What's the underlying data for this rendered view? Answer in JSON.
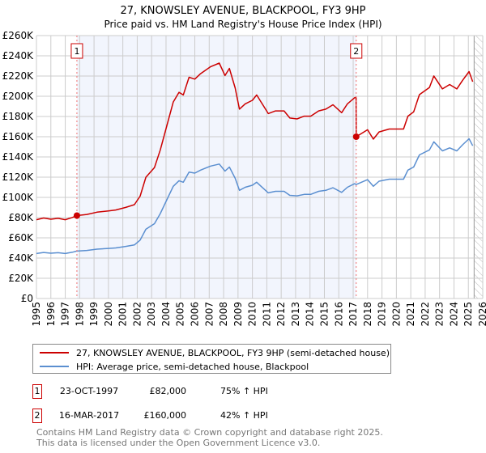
{
  "chart_data": {
    "type": "line",
    "title": "27, KNOWSLEY AVENUE, BLACKPOOL, FY3 9HP",
    "subtitle": "Price paid vs. HM Land Registry's House Price Index (HPI)",
    "xlim": [
      1995,
      2026
    ],
    "ylim": [
      0,
      260000
    ],
    "x_ticks": [
      "1995",
      "1996",
      "1997",
      "1998",
      "1999",
      "2000",
      "2001",
      "2002",
      "2003",
      "2004",
      "2005",
      "2006",
      "2007",
      "2008",
      "2009",
      "2010",
      "2011",
      "2012",
      "2013",
      "2014",
      "2015",
      "2016",
      "2017",
      "2018",
      "2019",
      "2020",
      "2021",
      "2022",
      "2023",
      "2024",
      "2025",
      "2026"
    ],
    "y_ticks": [
      {
        "v": 0,
        "label": "£0"
      },
      {
        "v": 20000,
        "label": "£20K"
      },
      {
        "v": 40000,
        "label": "£40K"
      },
      {
        "v": 60000,
        "label": "£60K"
      },
      {
        "v": 80000,
        "label": "£80K"
      },
      {
        "v": 100000,
        "label": "£100K"
      },
      {
        "v": 120000,
        "label": "£120K"
      },
      {
        "v": 140000,
        "label": "£140K"
      },
      {
        "v": 160000,
        "label": "£160K"
      },
      {
        "v": 180000,
        "label": "£180K"
      },
      {
        "v": 200000,
        "label": "£200K"
      },
      {
        "v": 220000,
        "label": "£220K"
      },
      {
        "v": 240000,
        "label": "£240K"
      },
      {
        "v": 260000,
        "label": "£260K"
      }
    ],
    "grid": true,
    "legend_placement": "below",
    "series": [
      {
        "name": "27, KNOWSLEY AVENUE, BLACKPOOL, FY3 9HP (semi-detached house)",
        "color": "#cc0000",
        "x": [
          1995.0,
          1995.5,
          1996.0,
          1996.5,
          1997.0,
          1997.5,
          1997.81,
          1998.5,
          1999.2,
          2000.0,
          2000.5,
          2001.2,
          2001.8,
          2002.2,
          2002.6,
          2003.2,
          2003.6,
          2004.0,
          2004.5,
          2004.9,
          2005.2,
          2005.6,
          2006.0,
          2006.4,
          2007.1,
          2007.7,
          2008.1,
          2008.4,
          2008.8,
          2009.1,
          2009.5,
          2010.0,
          2010.3,
          2010.6,
          2011.1,
          2011.6,
          2012.2,
          2012.6,
          2013.1,
          2013.6,
          2014.05,
          2014.6,
          2015.1,
          2015.6,
          2016.2,
          2016.6,
          2017.1,
          2017.2,
          2017.21,
          2018.0,
          2018.4,
          2018.8,
          2019.5,
          2020.5,
          2020.8,
          2021.2,
          2021.6,
          2022.3,
          2022.6,
          2023.2,
          2023.7,
          2024.2,
          2024.6,
          2025.05,
          2025.3
        ],
        "y": [
          77900,
          79600,
          78400,
          79300,
          77900,
          80200,
          82000,
          83100,
          85400,
          86600,
          87500,
          90100,
          92800,
          101200,
          119900,
          129500,
          147000,
          168000,
          194300,
          203900,
          201300,
          218800,
          217000,
          222300,
          229300,
          232800,
          220500,
          227500,
          208300,
          187300,
          192500,
          196000,
          201300,
          194300,
          182900,
          185500,
          185500,
          178500,
          177600,
          180300,
          180300,
          185500,
          187300,
          191600,
          183800,
          192500,
          198600,
          199000,
          160000,
          166900,
          157600,
          164700,
          167600,
          167600,
          180300,
          184600,
          201600,
          208700,
          220100,
          207300,
          211600,
          207300,
          215800,
          224400,
          214400
        ]
      },
      {
        "name": "HPI: Average price, semi-detached house, Blackpool",
        "color": "#5b8fd0",
        "x": [
          1995.0,
          1995.5,
          1996.0,
          1996.5,
          1997.0,
          1997.5,
          1997.81,
          1998.5,
          1999.2,
          2000.0,
          2000.5,
          2001.2,
          2001.8,
          2002.2,
          2002.6,
          2003.2,
          2003.6,
          2004.0,
          2004.5,
          2004.9,
          2005.2,
          2005.6,
          2006.0,
          2006.4,
          2007.1,
          2007.7,
          2008.1,
          2008.4,
          2008.8,
          2009.1,
          2009.5,
          2010.0,
          2010.3,
          2010.6,
          2011.1,
          2011.6,
          2012.2,
          2012.6,
          2013.1,
          2013.6,
          2014.05,
          2014.6,
          2015.1,
          2015.6,
          2016.2,
          2016.6,
          2017.1,
          2017.21,
          2018.0,
          2018.4,
          2018.8,
          2019.5,
          2020.5,
          2020.8,
          2021.2,
          2021.6,
          2022.3,
          2022.6,
          2023.2,
          2023.7,
          2024.2,
          2024.6,
          2025.05,
          2025.3
        ],
        "y": [
          44500,
          45500,
          44800,
          45300,
          44500,
          45800,
          46900,
          47500,
          48800,
          49500,
          50000,
          51500,
          53000,
          57800,
          68500,
          74000,
          84000,
          96000,
          111000,
          116500,
          115000,
          125000,
          124000,
          127000,
          131000,
          133000,
          126000,
          130000,
          119000,
          107000,
          110000,
          112000,
          115000,
          111000,
          104500,
          106000,
          106000,
          102000,
          101500,
          103000,
          103000,
          106000,
          107000,
          109500,
          105000,
          110000,
          113500,
          112700,
          117500,
          111000,
          116000,
          118000,
          118000,
          127000,
          130000,
          142000,
          147000,
          155000,
          146000,
          149000,
          146000,
          152000,
          158000,
          151000
        ]
      }
    ],
    "annotations": [
      {
        "label": "1",
        "x": 1997.81,
        "y": 82000
      },
      {
        "label": "2",
        "x": 2017.21,
        "y": 160000
      }
    ],
    "hatched_from": 2025.4
  },
  "legend": {
    "property": "27, KNOWSLEY AVENUE, BLACKPOOL, FY3 9HP (semi-detached house)",
    "hpi": "HPI: Average price, semi-detached house, Blackpool"
  },
  "transactions": [
    {
      "num": "1",
      "date": "23-OCT-1997",
      "price": "£82,000",
      "hpi": "75% ↑ HPI"
    },
    {
      "num": "2",
      "date": "16-MAR-2017",
      "price": "£160,000",
      "hpi": "42% ↑ HPI"
    }
  ],
  "footer": {
    "line1": "Contains HM Land Registry data © Crown copyright and database right 2025.",
    "line2": "This data is licensed under the Open Government Licence v3.0."
  }
}
